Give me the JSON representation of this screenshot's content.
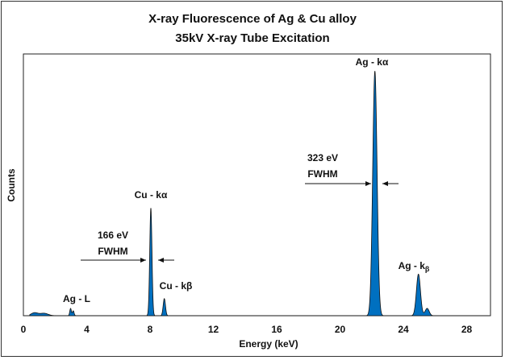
{
  "chart_data": {
    "type": "area",
    "title": "X-ray Fluorescence of Ag & Cu alloy",
    "subtitle": "35kV X-ray Tube Excitation",
    "xlabel": "Energy (keV)",
    "ylabel": "Counts",
    "xlim": [
      0,
      29.5
    ],
    "ylim": [
      0,
      107
    ],
    "xticks": [
      0,
      4,
      8,
      12,
      16,
      20,
      24,
      28
    ],
    "grid": false,
    "legend": "none",
    "fill_color": "#0070C0",
    "peaks": [
      {
        "energy": 0.7,
        "counts": 1.2,
        "fwhm": 0.5
      },
      {
        "energy": 1.3,
        "counts": 1.0,
        "fwhm": 0.6
      },
      {
        "energy": 2.98,
        "counts": 3.0,
        "fwhm": 0.12
      },
      {
        "energy": 3.15,
        "counts": 2.0,
        "fwhm": 0.12
      },
      {
        "energy": 8.05,
        "counts": 44,
        "fwhm": 0.166
      },
      {
        "energy": 8.9,
        "counts": 7,
        "fwhm": 0.17
      },
      {
        "energy": 22.2,
        "counts": 100,
        "fwhm": 0.323
      },
      {
        "energy": 24.95,
        "counts": 17,
        "fwhm": 0.3
      },
      {
        "energy": 25.5,
        "counts": 3,
        "fwhm": 0.3
      }
    ],
    "annotations": {
      "ag_l": "Ag - L",
      "cu_ka": "Cu - kα",
      "cu_kb": "Cu - kβ",
      "ag_ka": "Ag - kα",
      "ag_kb": "Ag - k",
      "ag_kb_sub": "β",
      "cu_fwhm_value": "166 eV",
      "cu_fwhm_label": "FWHM",
      "ag_fwhm_value": "323 eV",
      "ag_fwhm_label": "FWHM"
    }
  }
}
